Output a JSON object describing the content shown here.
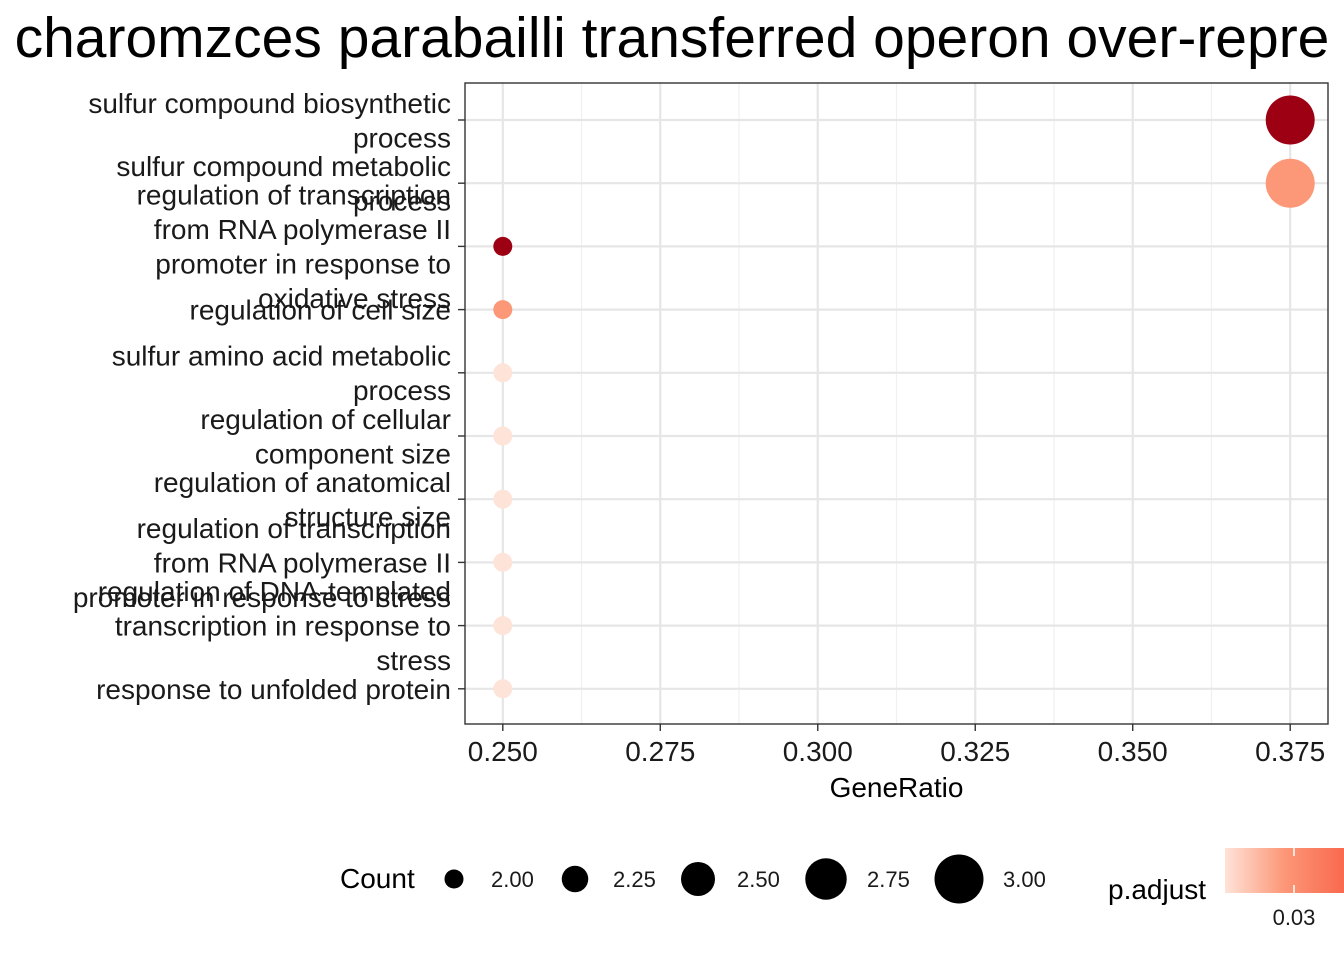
{
  "chart_data": {
    "type": "scatter",
    "title": "charomzces parabailli transferred operon over-repre",
    "xlabel": "GeneRatio",
    "ylabel": "",
    "xlim": [
      0.244,
      0.381
    ],
    "x_ticks": [
      "0.250",
      "0.275",
      "0.300",
      "0.325",
      "0.350",
      "0.375"
    ],
    "x_tick_values": [
      0.25,
      0.275,
      0.3,
      0.325,
      0.35,
      0.375
    ],
    "grid": true,
    "legend_placement": "bottom",
    "terms": [
      {
        "label": [
          "sulfur compound biosynthetic",
          "process"
        ],
        "gene_ratio": 0.375,
        "count": 3,
        "color": "#9C0012"
      },
      {
        "label": [
          "sulfur compound metabolic",
          "process"
        ],
        "gene_ratio": 0.375,
        "count": 3,
        "color": "#FC9777"
      },
      {
        "label": [
          "regulation of transcription",
          "from RNA polymerase II",
          "promoter in response to",
          "oxidative stress"
        ],
        "gene_ratio": 0.25,
        "count": 2,
        "color": "#9C0012"
      },
      {
        "label": [
          "regulation of cell size"
        ],
        "gene_ratio": 0.25,
        "count": 2,
        "color": "#FC9777"
      },
      {
        "label": [
          "sulfur amino acid metabolic",
          "process"
        ],
        "gene_ratio": 0.25,
        "count": 2,
        "color": "#FEE3D8"
      },
      {
        "label": [
          "regulation of cellular",
          "component size"
        ],
        "gene_ratio": 0.25,
        "count": 2,
        "color": "#FEE3D8"
      },
      {
        "label": [
          "regulation of anatomical",
          "structure size"
        ],
        "gene_ratio": 0.25,
        "count": 2,
        "color": "#FEE3D8"
      },
      {
        "label": [
          "regulation of transcription",
          "from RNA polymerase II",
          "promoter in response to stress"
        ],
        "gene_ratio": 0.25,
        "count": 2,
        "color": "#FEE3D8"
      },
      {
        "label": [
          "regulation of DNA-templated",
          "transcription in response to",
          "stress"
        ],
        "gene_ratio": 0.25,
        "count": 2,
        "color": "#FEE3D8"
      },
      {
        "label": [
          "response to unfolded protein"
        ],
        "gene_ratio": 0.25,
        "count": 2,
        "color": "#FEE3D8"
      }
    ],
    "size_legend": {
      "title": "Count",
      "entries": [
        {
          "label": "2.00",
          "value": 2.0
        },
        {
          "label": "2.25",
          "value": 2.25
        },
        {
          "label": "2.50",
          "value": 2.5
        },
        {
          "label": "2.75",
          "value": 2.75
        },
        {
          "label": "3.00",
          "value": 3.0
        }
      ]
    },
    "color_legend": {
      "title": "p.adjust",
      "tick_label": "0.03",
      "gradient": [
        "#FEE3D8",
        "#FC9777",
        "#F9694F"
      ]
    }
  }
}
